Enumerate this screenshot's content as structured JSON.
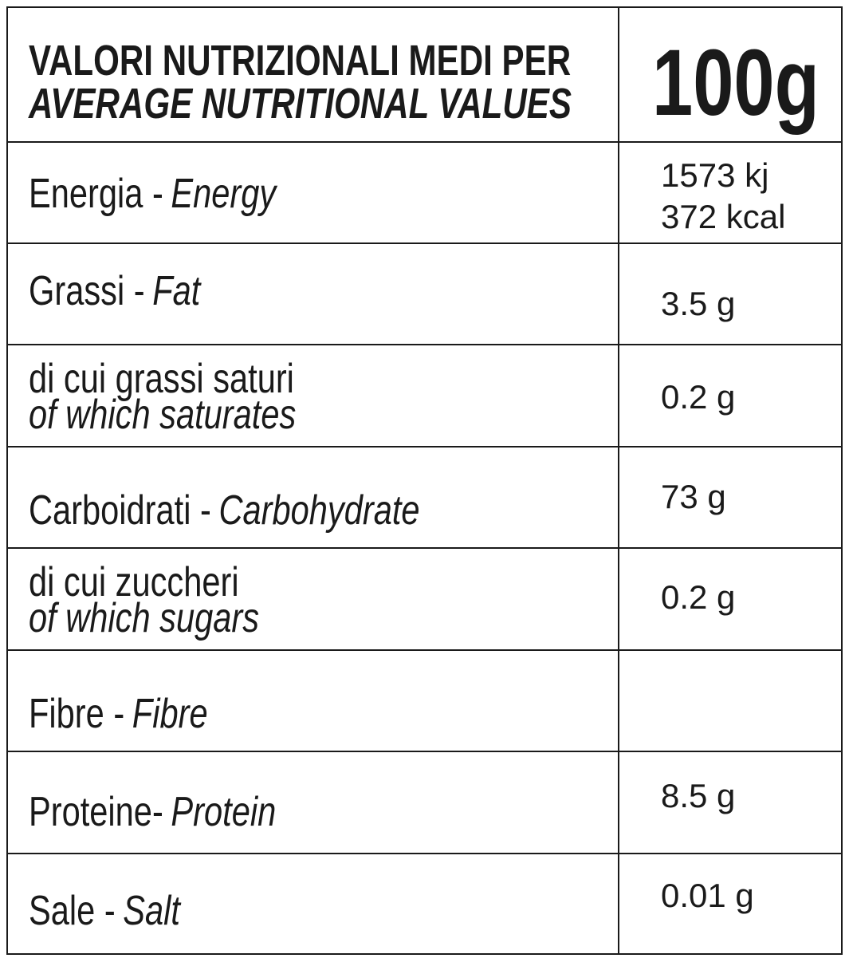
{
  "header": {
    "title_it": "VALORI NUTRIZIONALI MEDI PER",
    "title_en": "AVERAGE NUTRITIONAL VALUES",
    "per": "100g"
  },
  "rows": [
    {
      "label_it": "Energia -",
      "label_en": "Energy",
      "values": [
        "1573 kj",
        "372 kcal"
      ]
    },
    {
      "label_it": "Grassi -",
      "label_en": "Fat",
      "values": [
        "3.5 g"
      ]
    },
    {
      "label_it": "di cui grassi saturi",
      "label_en": "of which saturates",
      "values": [
        "0.2 g"
      ]
    },
    {
      "label_it": "Carboidrati -",
      "label_en": "Carbohydrate",
      "values": [
        "73 g"
      ]
    },
    {
      "label_it": "di cui zuccheri",
      "label_en": "of which sugars",
      "values": [
        "0.2 g"
      ]
    },
    {
      "label_it": "Fibre -",
      "label_en": "Fibre"
    },
    {
      "label_it": "Proteine-",
      "label_en": "Protein",
      "values": [
        "8.5 g"
      ]
    },
    {
      "label_it": "Sale -",
      "label_en": "Salt",
      "values": [
        "0.01 g"
      ]
    }
  ]
}
